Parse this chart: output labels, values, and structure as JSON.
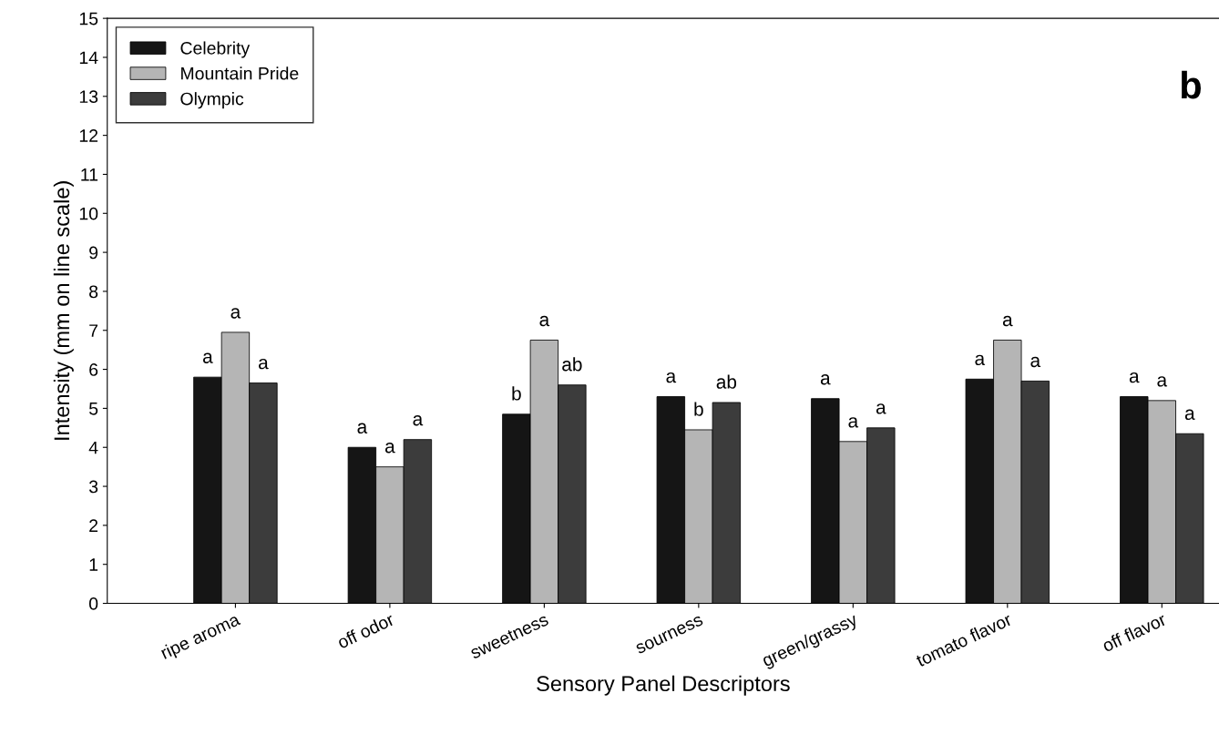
{
  "chart_data": {
    "type": "bar",
    "categories": [
      "ripe aroma",
      "off odor",
      "sweetness",
      "sourness",
      "green/grassy",
      "tomato flavor",
      "off flavor"
    ],
    "series": [
      {
        "name": "Celebrity",
        "color": "#151515",
        "values": [
          5.8,
          4.0,
          4.85,
          5.3,
          5.25,
          5.75,
          5.3
        ],
        "value_labels": [
          "a",
          "a",
          "b",
          "a",
          "a",
          "a",
          "a"
        ]
      },
      {
        "name": "Mountain Pride",
        "color": "#b5b5b5",
        "values": [
          6.95,
          3.5,
          6.75,
          4.45,
          4.15,
          6.75,
          5.2
        ],
        "value_labels": [
          "a",
          "a",
          "a",
          "b",
          "a",
          "a",
          "a"
        ]
      },
      {
        "name": "Olympic",
        "color": "#3c3c3c",
        "values": [
          5.65,
          4.2,
          5.6,
          5.15,
          4.5,
          5.7,
          4.35
        ],
        "value_labels": [
          "a",
          "a",
          "ab",
          "ab",
          "a",
          "a",
          "a"
        ]
      }
    ],
    "xlabel": "Sensory Panel Descriptors",
    "ylabel": "Intensity (mm on line scale)",
    "ylim": [
      0,
      15
    ],
    "yticks": [
      0,
      1,
      2,
      3,
      4,
      5,
      6,
      7,
      8,
      9,
      10,
      11,
      12,
      13,
      14,
      15
    ],
    "legend": "top left",
    "grid": false,
    "annotations": [
      "b"
    ]
  }
}
